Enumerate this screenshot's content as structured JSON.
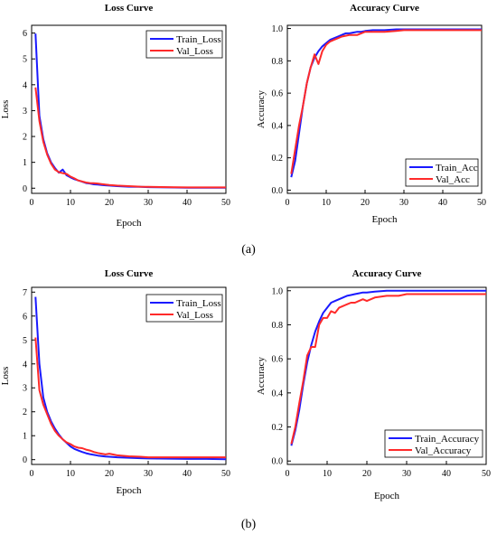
{
  "panel_labels": [
    "(a)",
    "(b)"
  ],
  "colors": {
    "train": "#1a1aff",
    "val": "#ff2a2a",
    "axis": "#000000"
  },
  "chart_data": [
    {
      "type": "line",
      "title": "Loss Curve",
      "xlabel": "Epoch",
      "ylabel": "Loss",
      "xlim": [
        0,
        50
      ],
      "ylim": [
        -0.2,
        6.3
      ],
      "xticks": [
        0,
        10,
        20,
        30,
        40,
        50
      ],
      "yticks": [
        0,
        1,
        2,
        3,
        4,
        5,
        6
      ],
      "grid": false,
      "legend_position": "top-right",
      "x": [
        1,
        2,
        3,
        4,
        5,
        6,
        7,
        8,
        9,
        10,
        11,
        12,
        13,
        14,
        15,
        16,
        17,
        18,
        19,
        20,
        22,
        25,
        28,
        30,
        35,
        40,
        45,
        50
      ],
      "series": [
        {
          "name": "Train_Loss",
          "color_key": "train",
          "values": [
            5.98,
            2.8,
            1.9,
            1.35,
            1.0,
            0.78,
            0.6,
            0.72,
            0.5,
            0.42,
            0.35,
            0.3,
            0.25,
            0.2,
            0.18,
            0.15,
            0.14,
            0.12,
            0.11,
            0.1,
            0.08,
            0.06,
            0.05,
            0.04,
            0.03,
            0.02,
            0.02,
            0.02
          ]
        },
        {
          "name": "Val_Loss",
          "color_key": "val",
          "values": [
            3.9,
            2.6,
            1.8,
            1.3,
            0.95,
            0.72,
            0.62,
            0.58,
            0.55,
            0.45,
            0.38,
            0.3,
            0.26,
            0.22,
            0.2,
            0.19,
            0.18,
            0.16,
            0.14,
            0.12,
            0.1,
            0.08,
            0.06,
            0.05,
            0.04,
            0.03,
            0.03,
            0.03
          ]
        }
      ]
    },
    {
      "type": "line",
      "title": "Accuracy Curve",
      "xlabel": "Epoch",
      "ylabel": "Accuracy",
      "xlim": [
        0,
        50
      ],
      "ylim": [
        -0.02,
        1.02
      ],
      "xticks": [
        0,
        10,
        20,
        30,
        40,
        50
      ],
      "yticks": [
        0.0,
        0.2,
        0.4,
        0.6,
        0.8,
        1.0
      ],
      "ytick_decimals": 1,
      "grid": false,
      "legend_position": "bottom-right",
      "x": [
        1,
        2,
        3,
        4,
        5,
        6,
        7,
        8,
        9,
        10,
        11,
        12,
        13,
        14,
        15,
        16,
        17,
        18,
        19,
        20,
        22,
        25,
        28,
        30,
        35,
        40,
        45,
        50
      ],
      "series": [
        {
          "name": "Train_Acc",
          "color_key": "train",
          "values": [
            0.08,
            0.18,
            0.35,
            0.52,
            0.66,
            0.76,
            0.82,
            0.86,
            0.89,
            0.91,
            0.93,
            0.94,
            0.95,
            0.96,
            0.97,
            0.97,
            0.975,
            0.98,
            0.98,
            0.985,
            0.99,
            0.99,
            0.995,
            0.995,
            0.995,
            0.995,
            0.995,
            0.995
          ]
        },
        {
          "name": "Val_Acc",
          "color_key": "val",
          "values": [
            0.1,
            0.25,
            0.4,
            0.52,
            0.66,
            0.76,
            0.84,
            0.78,
            0.86,
            0.9,
            0.92,
            0.93,
            0.94,
            0.95,
            0.955,
            0.96,
            0.96,
            0.96,
            0.97,
            0.98,
            0.98,
            0.98,
            0.985,
            0.99,
            0.99,
            0.99,
            0.99,
            0.99
          ]
        }
      ]
    },
    {
      "type": "line",
      "title": "Loss Curve",
      "xlabel": "Epoch",
      "ylabel": "Loss",
      "xlim": [
        0,
        50
      ],
      "ylim": [
        -0.2,
        7.2
      ],
      "xticks": [
        0,
        10,
        20,
        30,
        40,
        50
      ],
      "yticks": [
        0,
        1,
        2,
        3,
        4,
        5,
        6,
        7
      ],
      "grid": false,
      "legend_position": "top-right",
      "x": [
        1,
        2,
        3,
        4,
        5,
        6,
        7,
        8,
        9,
        10,
        11,
        12,
        13,
        14,
        15,
        16,
        17,
        18,
        19,
        20,
        22,
        25,
        28,
        30,
        35,
        40,
        45,
        50
      ],
      "series": [
        {
          "name": "Train_Loss",
          "color_key": "train",
          "values": [
            6.8,
            4.0,
            2.6,
            2.0,
            1.6,
            1.3,
            1.05,
            0.85,
            0.7,
            0.55,
            0.45,
            0.38,
            0.32,
            0.27,
            0.23,
            0.2,
            0.17,
            0.15,
            0.13,
            0.12,
            0.1,
            0.08,
            0.06,
            0.05,
            0.04,
            0.03,
            0.03,
            0.02
          ]
        },
        {
          "name": "Val_Loss",
          "color_key": "val",
          "values": [
            5.1,
            2.9,
            2.3,
            1.9,
            1.5,
            1.2,
            1.0,
            0.85,
            0.72,
            0.65,
            0.55,
            0.5,
            0.48,
            0.42,
            0.38,
            0.32,
            0.28,
            0.25,
            0.22,
            0.25,
            0.18,
            0.14,
            0.12,
            0.1,
            0.1,
            0.1,
            0.1,
            0.1
          ]
        }
      ]
    },
    {
      "type": "line",
      "title": "Accuracy Curve",
      "xlabel": "Epoch",
      "ylabel": "Accuracy",
      "xlim": [
        0,
        50
      ],
      "ylim": [
        -0.02,
        1.02
      ],
      "xticks": [
        0,
        10,
        20,
        30,
        40,
        50
      ],
      "yticks": [
        0.0,
        0.2,
        0.4,
        0.6,
        0.8,
        1.0
      ],
      "ytick_decimals": 1,
      "grid": false,
      "legend_position": "bottom-right",
      "x": [
        1,
        2,
        3,
        4,
        5,
        6,
        7,
        8,
        9,
        10,
        11,
        12,
        13,
        14,
        15,
        16,
        17,
        18,
        19,
        20,
        22,
        25,
        28,
        30,
        35,
        40,
        45,
        50
      ],
      "series": [
        {
          "name": "Train_Accuracy",
          "color_key": "train",
          "values": [
            0.09,
            0.18,
            0.3,
            0.45,
            0.58,
            0.68,
            0.76,
            0.82,
            0.87,
            0.9,
            0.93,
            0.94,
            0.95,
            0.96,
            0.97,
            0.975,
            0.98,
            0.985,
            0.99,
            0.99,
            0.995,
            1.0,
            1.0,
            1.0,
            1.0,
            1.0,
            1.0,
            1.0
          ]
        },
        {
          "name": "Val_Accuracy",
          "color_key": "val",
          "values": [
            0.1,
            0.2,
            0.34,
            0.47,
            0.62,
            0.67,
            0.67,
            0.8,
            0.84,
            0.84,
            0.88,
            0.87,
            0.9,
            0.91,
            0.92,
            0.93,
            0.93,
            0.94,
            0.95,
            0.94,
            0.96,
            0.97,
            0.97,
            0.98,
            0.98,
            0.98,
            0.98,
            0.98
          ]
        }
      ]
    }
  ]
}
